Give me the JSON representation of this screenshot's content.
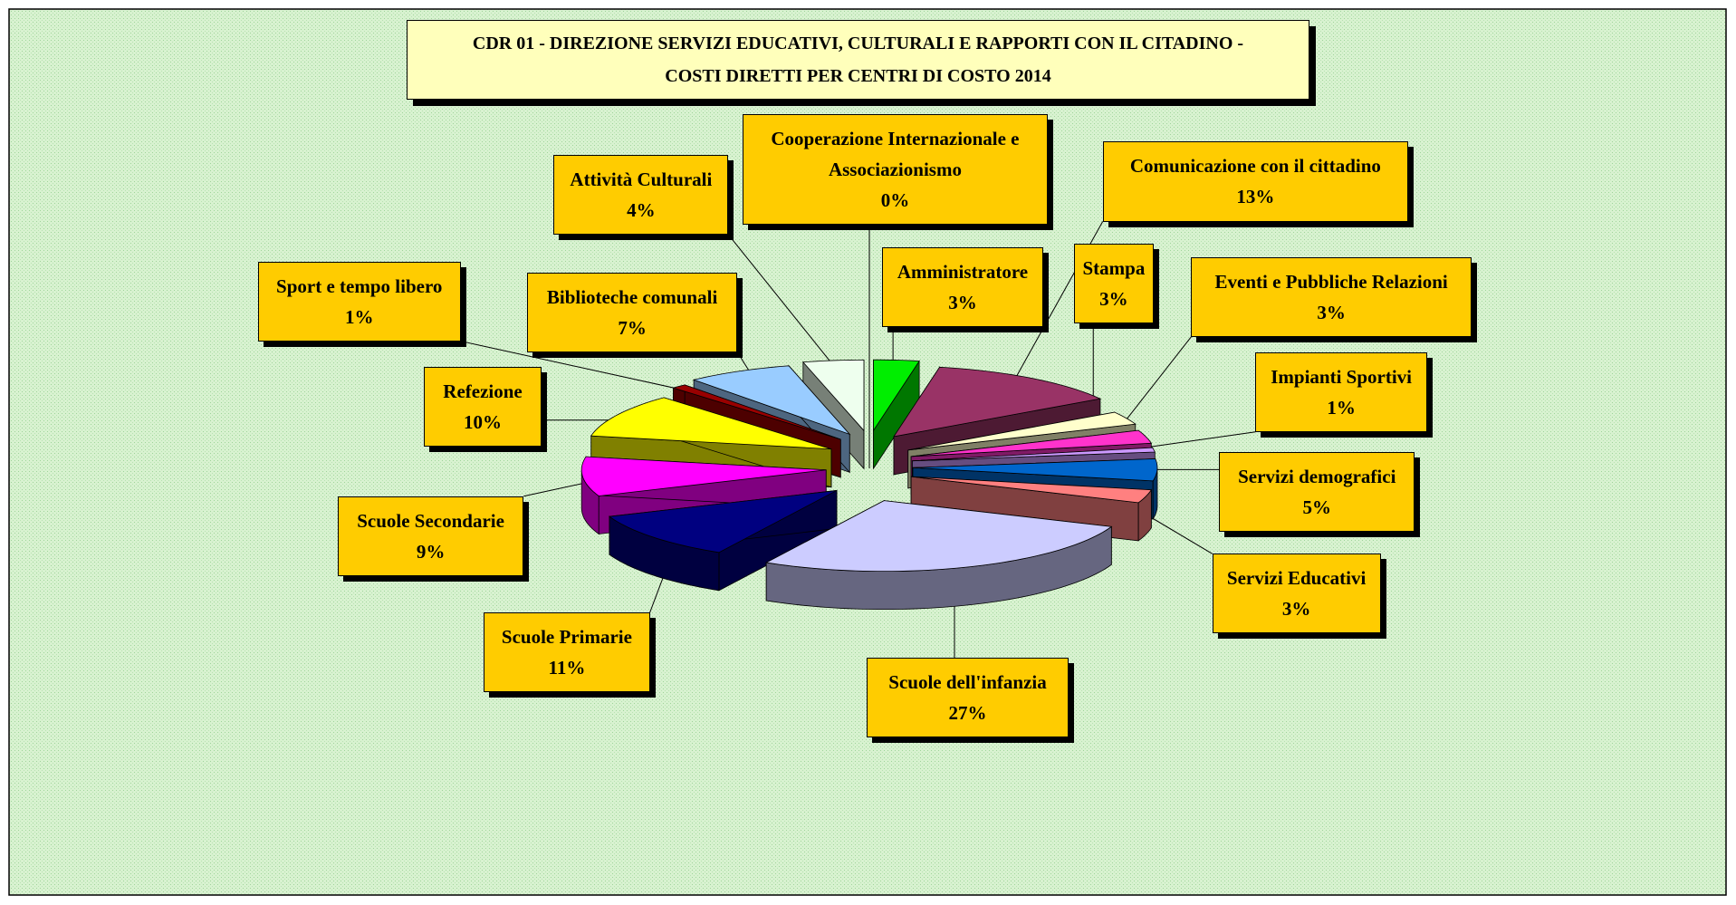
{
  "chart_data": {
    "type": "pie3d",
    "title": "CDR 01 -  DIREZIONE SERVIZI EDUCATIVI, CULTURALI E RAPPORTI CON IL CITADINO -",
    "subtitle": "COSTI DIRETTI  PER CENTRI DI COSTO 2014",
    "categories": [
      "Amministratore",
      "Comunicazione con il cittadino",
      "Stampa",
      "Eventi e Pubbliche Relazioni",
      "Impianti Sportivi",
      "Servizi demografici",
      "Servizi Educativi",
      "Scuole dell'infanzia",
      "Scuole Primarie",
      "Scuole Secondarie",
      "Refezione",
      "Sport e tempo libero",
      "Biblioteche comunali",
      "Attività Culturali",
      "Cooperazione Internazionale e Associazionismo"
    ],
    "values": [
      3,
      13,
      3,
      3,
      1,
      5,
      3,
      27,
      11,
      9,
      10,
      1,
      7,
      4,
      0
    ],
    "value_labels": [
      "3%",
      "13%",
      "3%",
      "3%",
      "1%",
      "5%",
      "3%",
      "27%",
      "11%",
      "9%",
      "10%",
      "1%",
      "7%",
      "4%",
      "0%"
    ],
    "colors": [
      "#00ee00",
      "#993366",
      "#ffffcc",
      "#ff33cc",
      "#cc99ff",
      "#0066cc",
      "#ff8080",
      "#ccccff",
      "#000080",
      "#ff00ff",
      "#ffff00",
      "#990000",
      "#99ccff",
      "#eeffee",
      "#ffffff"
    ]
  }
}
